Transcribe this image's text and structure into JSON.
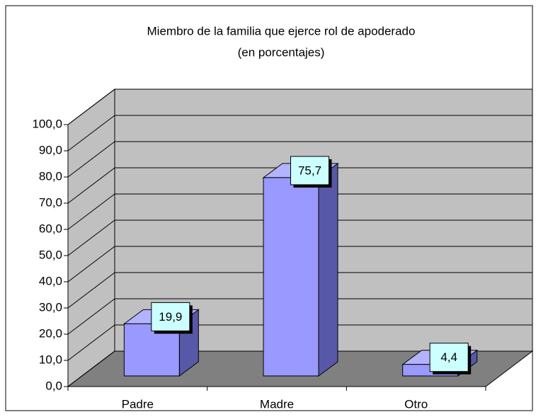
{
  "chart_data": {
    "type": "bar3d",
    "title": "Miembro de la familia que ejerce rol de apoderado",
    "subtitle": "(en porcentajes)",
    "categories": [
      "Padre",
      "Madre",
      "Otro"
    ],
    "values": [
      19.9,
      75.7,
      4.4
    ],
    "value_labels": [
      "19,9",
      "75,7",
      "4,4"
    ],
    "color": "#9999ff",
    "ylim": [
      0,
      100
    ],
    "yticks": [
      {
        "value": 0,
        "label": "0,0"
      },
      {
        "value": 10,
        "label": "10,0"
      },
      {
        "value": 20,
        "label": "20,0"
      },
      {
        "value": 30,
        "label": "30,0"
      },
      {
        "value": 40,
        "label": "40,0"
      },
      {
        "value": 50,
        "label": "50,0"
      },
      {
        "value": 60,
        "label": "60,0"
      },
      {
        "value": 70,
        "label": "70,0"
      },
      {
        "value": 80,
        "label": "80,0"
      },
      {
        "value": 90,
        "label": "90,0"
      },
      {
        "value": 100,
        "label": "100,0"
      }
    ],
    "grid": true
  }
}
